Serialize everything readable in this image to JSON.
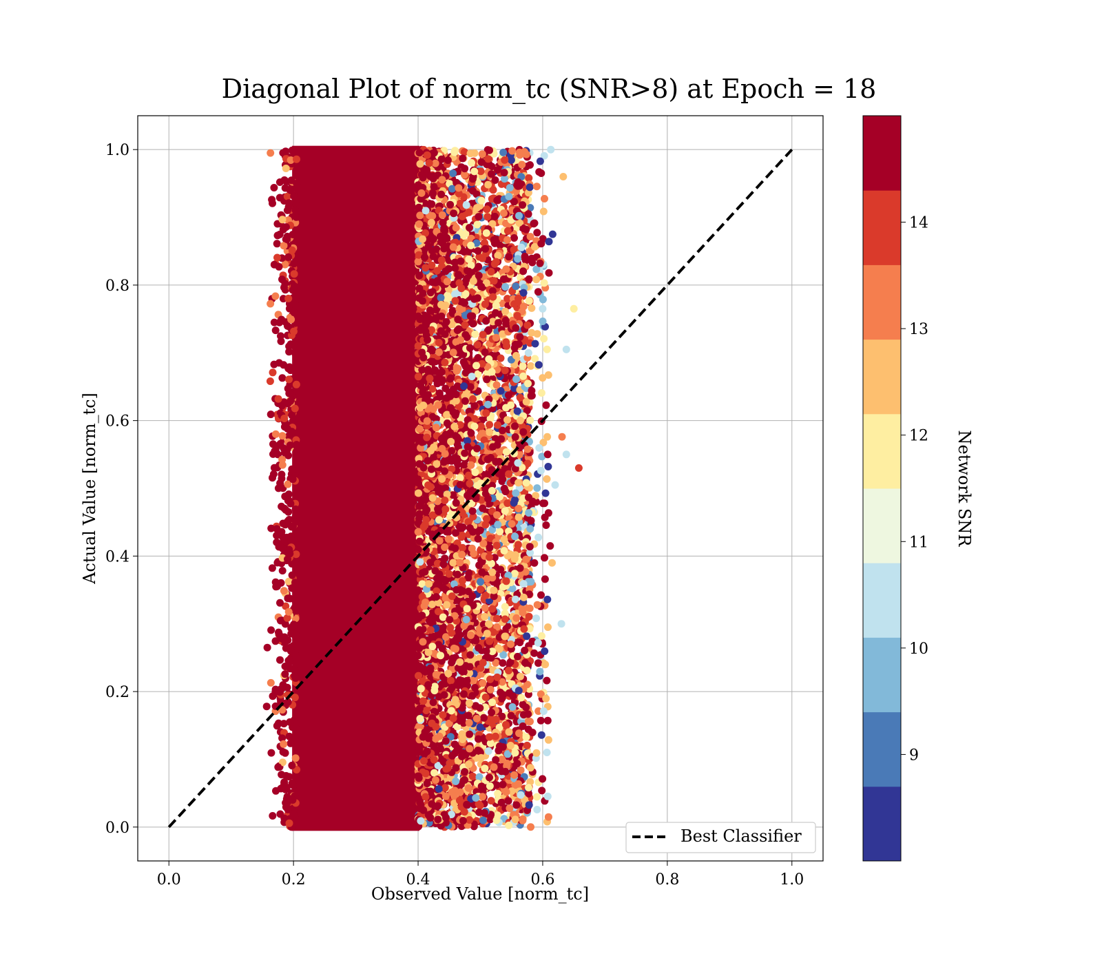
{
  "chart_data": {
    "type": "scatter",
    "title": "Diagonal Plot of norm_tc (SNR>8) at Epoch = 18",
    "xlabel": "Observed Value [norm_tc]",
    "ylabel": "Actual Value [norm_tc]",
    "xlim": [
      -0.05,
      1.05
    ],
    "ylim": [
      -0.05,
      1.05
    ],
    "x_ticks": [
      "0.0",
      "0.2",
      "0.4",
      "0.6",
      "0.8",
      "1.0"
    ],
    "y_ticks": [
      "0.0",
      "0.2",
      "0.4",
      "0.6",
      "0.8",
      "1.0"
    ],
    "grid": true,
    "legend": {
      "position": "bottom-right",
      "entries": [
        "Best Classifier"
      ]
    },
    "diagonal_line": {
      "x": [
        0.0,
        1.0
      ],
      "y": [
        0.0,
        1.0
      ],
      "style": "dashed",
      "color": "#000000"
    },
    "colorbar": {
      "label": "Network SNR",
      "range": [
        8.0,
        15.0
      ],
      "ticks": [
        "9",
        "10",
        "11",
        "12",
        "13",
        "14"
      ],
      "colors": [
        "#313695",
        "#4a7ab7",
        "#82b9d9",
        "#c0e2ee",
        "#eef7e0",
        "#feeea1",
        "#fdbf6f",
        "#f57e4e",
        "#da3a2b",
        "#a50026"
      ]
    },
    "scatter_region": {
      "dense_core_x": [
        0.2,
        0.4
      ],
      "observed_x_range": [
        0.155,
        0.66
      ],
      "actual_y_range": [
        0.0,
        1.0
      ],
      "dominant_snr": 14.5,
      "outliers": [
        {
          "x": 0.163,
          "y": 0.995,
          "snr": 13.2
        },
        {
          "x": 0.658,
          "y": 0.53,
          "snr": 13.8
        },
        {
          "x": 0.65,
          "y": 0.765,
          "snr": 12.0
        },
        {
          "x": 0.633,
          "y": 0.96,
          "snr": 12.5
        },
        {
          "x": 0.613,
          "y": 1.0,
          "snr": 10.5
        },
        {
          "x": 0.616,
          "y": 0.875,
          "snr": 8.5
        },
        {
          "x": 0.638,
          "y": 0.705,
          "snr": 10.6
        },
        {
          "x": 0.638,
          "y": 0.55,
          "snr": 10.6
        },
        {
          "x": 0.63,
          "y": 0.3,
          "snr": 10.6
        },
        {
          "x": 0.62,
          "y": 0.505,
          "snr": 10.6
        },
        {
          "x": 0.631,
          "y": 0.576,
          "snr": 13.2
        },
        {
          "x": 0.615,
          "y": 0.39,
          "snr": 12.5
        },
        {
          "x": 0.612,
          "y": 0.415,
          "snr": 14.5
        },
        {
          "x": 0.61,
          "y": 0.818,
          "snr": 14.5
        },
        {
          "x": 0.608,
          "y": 0.55,
          "snr": 14.5
        },
        {
          "x": 0.604,
          "y": 0.24,
          "snr": 12.5
        },
        {
          "x": 0.157,
          "y": 0.178,
          "snr": 14.5
        },
        {
          "x": 0.158,
          "y": 0.265,
          "snr": 14.5
        },
        {
          "x": 0.205,
          "y": 0.95,
          "snr": 14.5
        }
      ]
    }
  }
}
